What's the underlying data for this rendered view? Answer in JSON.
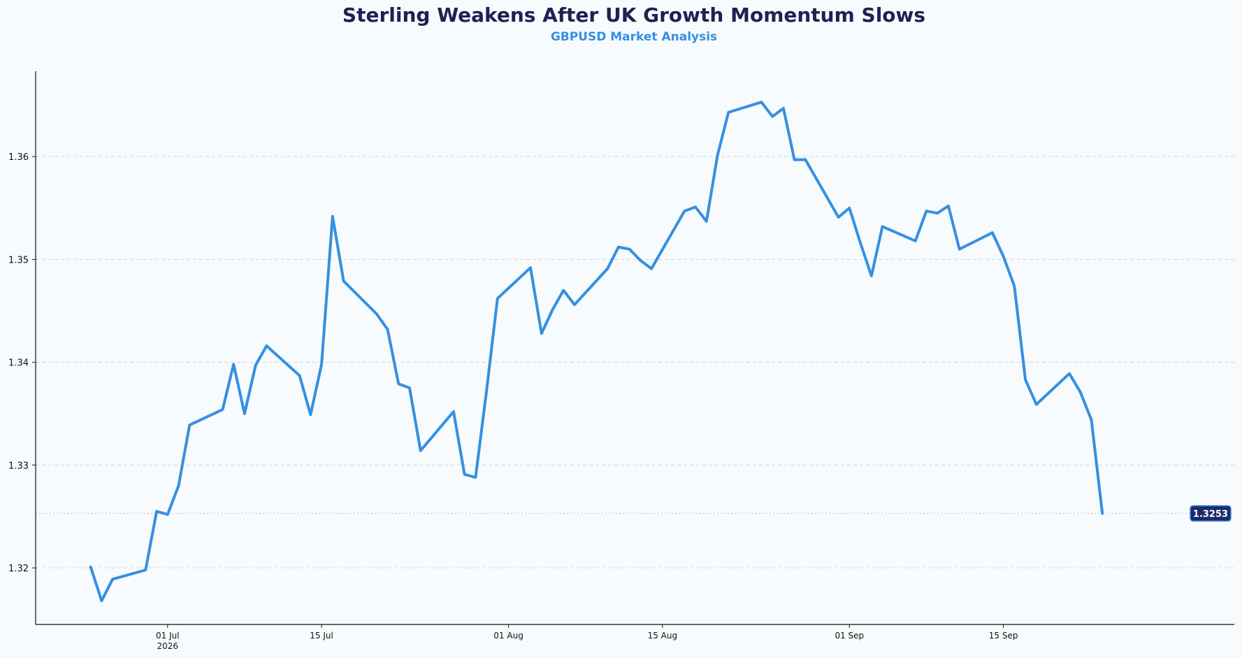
{
  "chart_data": {
    "type": "line",
    "title": "Sterling Weakens After UK Growth Momentum Slows",
    "subtitle": "GBPUSD Market Analysis",
    "xlabel": "",
    "ylabel": "",
    "ylim": [
      1.3145,
      1.3683
    ],
    "yticks": [
      "1.32",
      "1.33",
      "1.34",
      "1.35",
      "1.36"
    ],
    "xlim": [
      "2026-06-19",
      "2026-10-06"
    ],
    "xticks": [
      {
        "date": "2026-07-01",
        "label": "01 Jul",
        "sublabel": "2026"
      },
      {
        "date": "2026-07-15",
        "label": "15 Jul",
        "sublabel": ""
      },
      {
        "date": "2026-08-01",
        "label": "01 Aug",
        "sublabel": ""
      },
      {
        "date": "2026-08-15",
        "label": "15 Aug",
        "sublabel": ""
      },
      {
        "date": "2026-09-01",
        "label": "01 Sep",
        "sublabel": ""
      },
      {
        "date": "2026-09-15",
        "label": "15 Sep",
        "sublabel": ""
      }
    ],
    "grid": "horizontal-dashed",
    "line_color": "#3590e2",
    "title_color": "#1e2152",
    "subtitle_color": "#3590e2",
    "badge_color": "#1e2a6e",
    "last_value_label": "1.3253",
    "last_value": 1.3253,
    "series": [
      {
        "name": "",
        "points": [
          [
            "2026-06-24",
            1.3201
          ],
          [
            "2026-06-25",
            1.3168
          ],
          [
            "2026-06-26",
            1.3189
          ],
          [
            "2026-06-29",
            1.3198
          ],
          [
            "2026-06-30",
            1.3255
          ],
          [
            "2026-07-01",
            1.3252
          ],
          [
            "2026-07-02",
            1.328
          ],
          [
            "2026-07-03",
            1.3339
          ],
          [
            "2026-07-06",
            1.3354
          ],
          [
            "2026-07-07",
            1.3398
          ],
          [
            "2026-07-08",
            1.335
          ],
          [
            "2026-07-09",
            1.3397
          ],
          [
            "2026-07-10",
            1.3416
          ],
          [
            "2026-07-13",
            1.3387
          ],
          [
            "2026-07-14",
            1.3349
          ],
          [
            "2026-07-15",
            1.3398
          ],
          [
            "2026-07-16",
            1.3542
          ],
          [
            "2026-07-17",
            1.3479
          ],
          [
            "2026-07-20",
            1.3447
          ],
          [
            "2026-07-21",
            1.3432
          ],
          [
            "2026-07-22",
            1.3379
          ],
          [
            "2026-07-23",
            1.3375
          ],
          [
            "2026-07-24",
            1.3314
          ],
          [
            "2026-07-27",
            1.3352
          ],
          [
            "2026-07-28",
            1.3291
          ],
          [
            "2026-07-29",
            1.3288
          ],
          [
            "2026-07-30",
            1.3372
          ],
          [
            "2026-07-31",
            1.3462
          ],
          [
            "2026-08-03",
            1.3492
          ],
          [
            "2026-08-04",
            1.3428
          ],
          [
            "2026-08-05",
            1.3451
          ],
          [
            "2026-08-06",
            1.347
          ],
          [
            "2026-08-07",
            1.3456
          ],
          [
            "2026-08-10",
            1.3491
          ],
          [
            "2026-08-11",
            1.3512
          ],
          [
            "2026-08-12",
            1.351
          ],
          [
            "2026-08-13",
            1.3499
          ],
          [
            "2026-08-14",
            1.3491
          ],
          [
            "2026-08-17",
            1.3547
          ],
          [
            "2026-08-18",
            1.3551
          ],
          [
            "2026-08-19",
            1.3537
          ],
          [
            "2026-08-20",
            1.3601
          ],
          [
            "2026-08-21",
            1.3643
          ],
          [
            "2026-08-24",
            1.3653
          ],
          [
            "2026-08-25",
            1.3639
          ],
          [
            "2026-08-26",
            1.3647
          ],
          [
            "2026-08-27",
            1.3597
          ],
          [
            "2026-08-28",
            1.3597
          ],
          [
            "2026-08-31",
            1.3541
          ],
          [
            "2026-09-01",
            1.355
          ],
          [
            "2026-09-02",
            1.3516
          ],
          [
            "2026-09-03",
            1.3484
          ],
          [
            "2026-09-04",
            1.3532
          ],
          [
            "2026-09-07",
            1.3518
          ],
          [
            "2026-09-08",
            1.3547
          ],
          [
            "2026-09-09",
            1.3545
          ],
          [
            "2026-09-10",
            1.3552
          ],
          [
            "2026-09-11",
            1.351
          ],
          [
            "2026-09-14",
            1.3526
          ],
          [
            "2026-09-15",
            1.3503
          ],
          [
            "2026-09-16",
            1.3474
          ],
          [
            "2026-09-17",
            1.3383
          ],
          [
            "2026-09-18",
            1.3359
          ],
          [
            "2026-09-21",
            1.3389
          ],
          [
            "2026-09-22",
            1.3371
          ],
          [
            "2026-09-23",
            1.3344
          ],
          [
            "2026-09-24",
            1.3253
          ]
        ]
      }
    ]
  }
}
